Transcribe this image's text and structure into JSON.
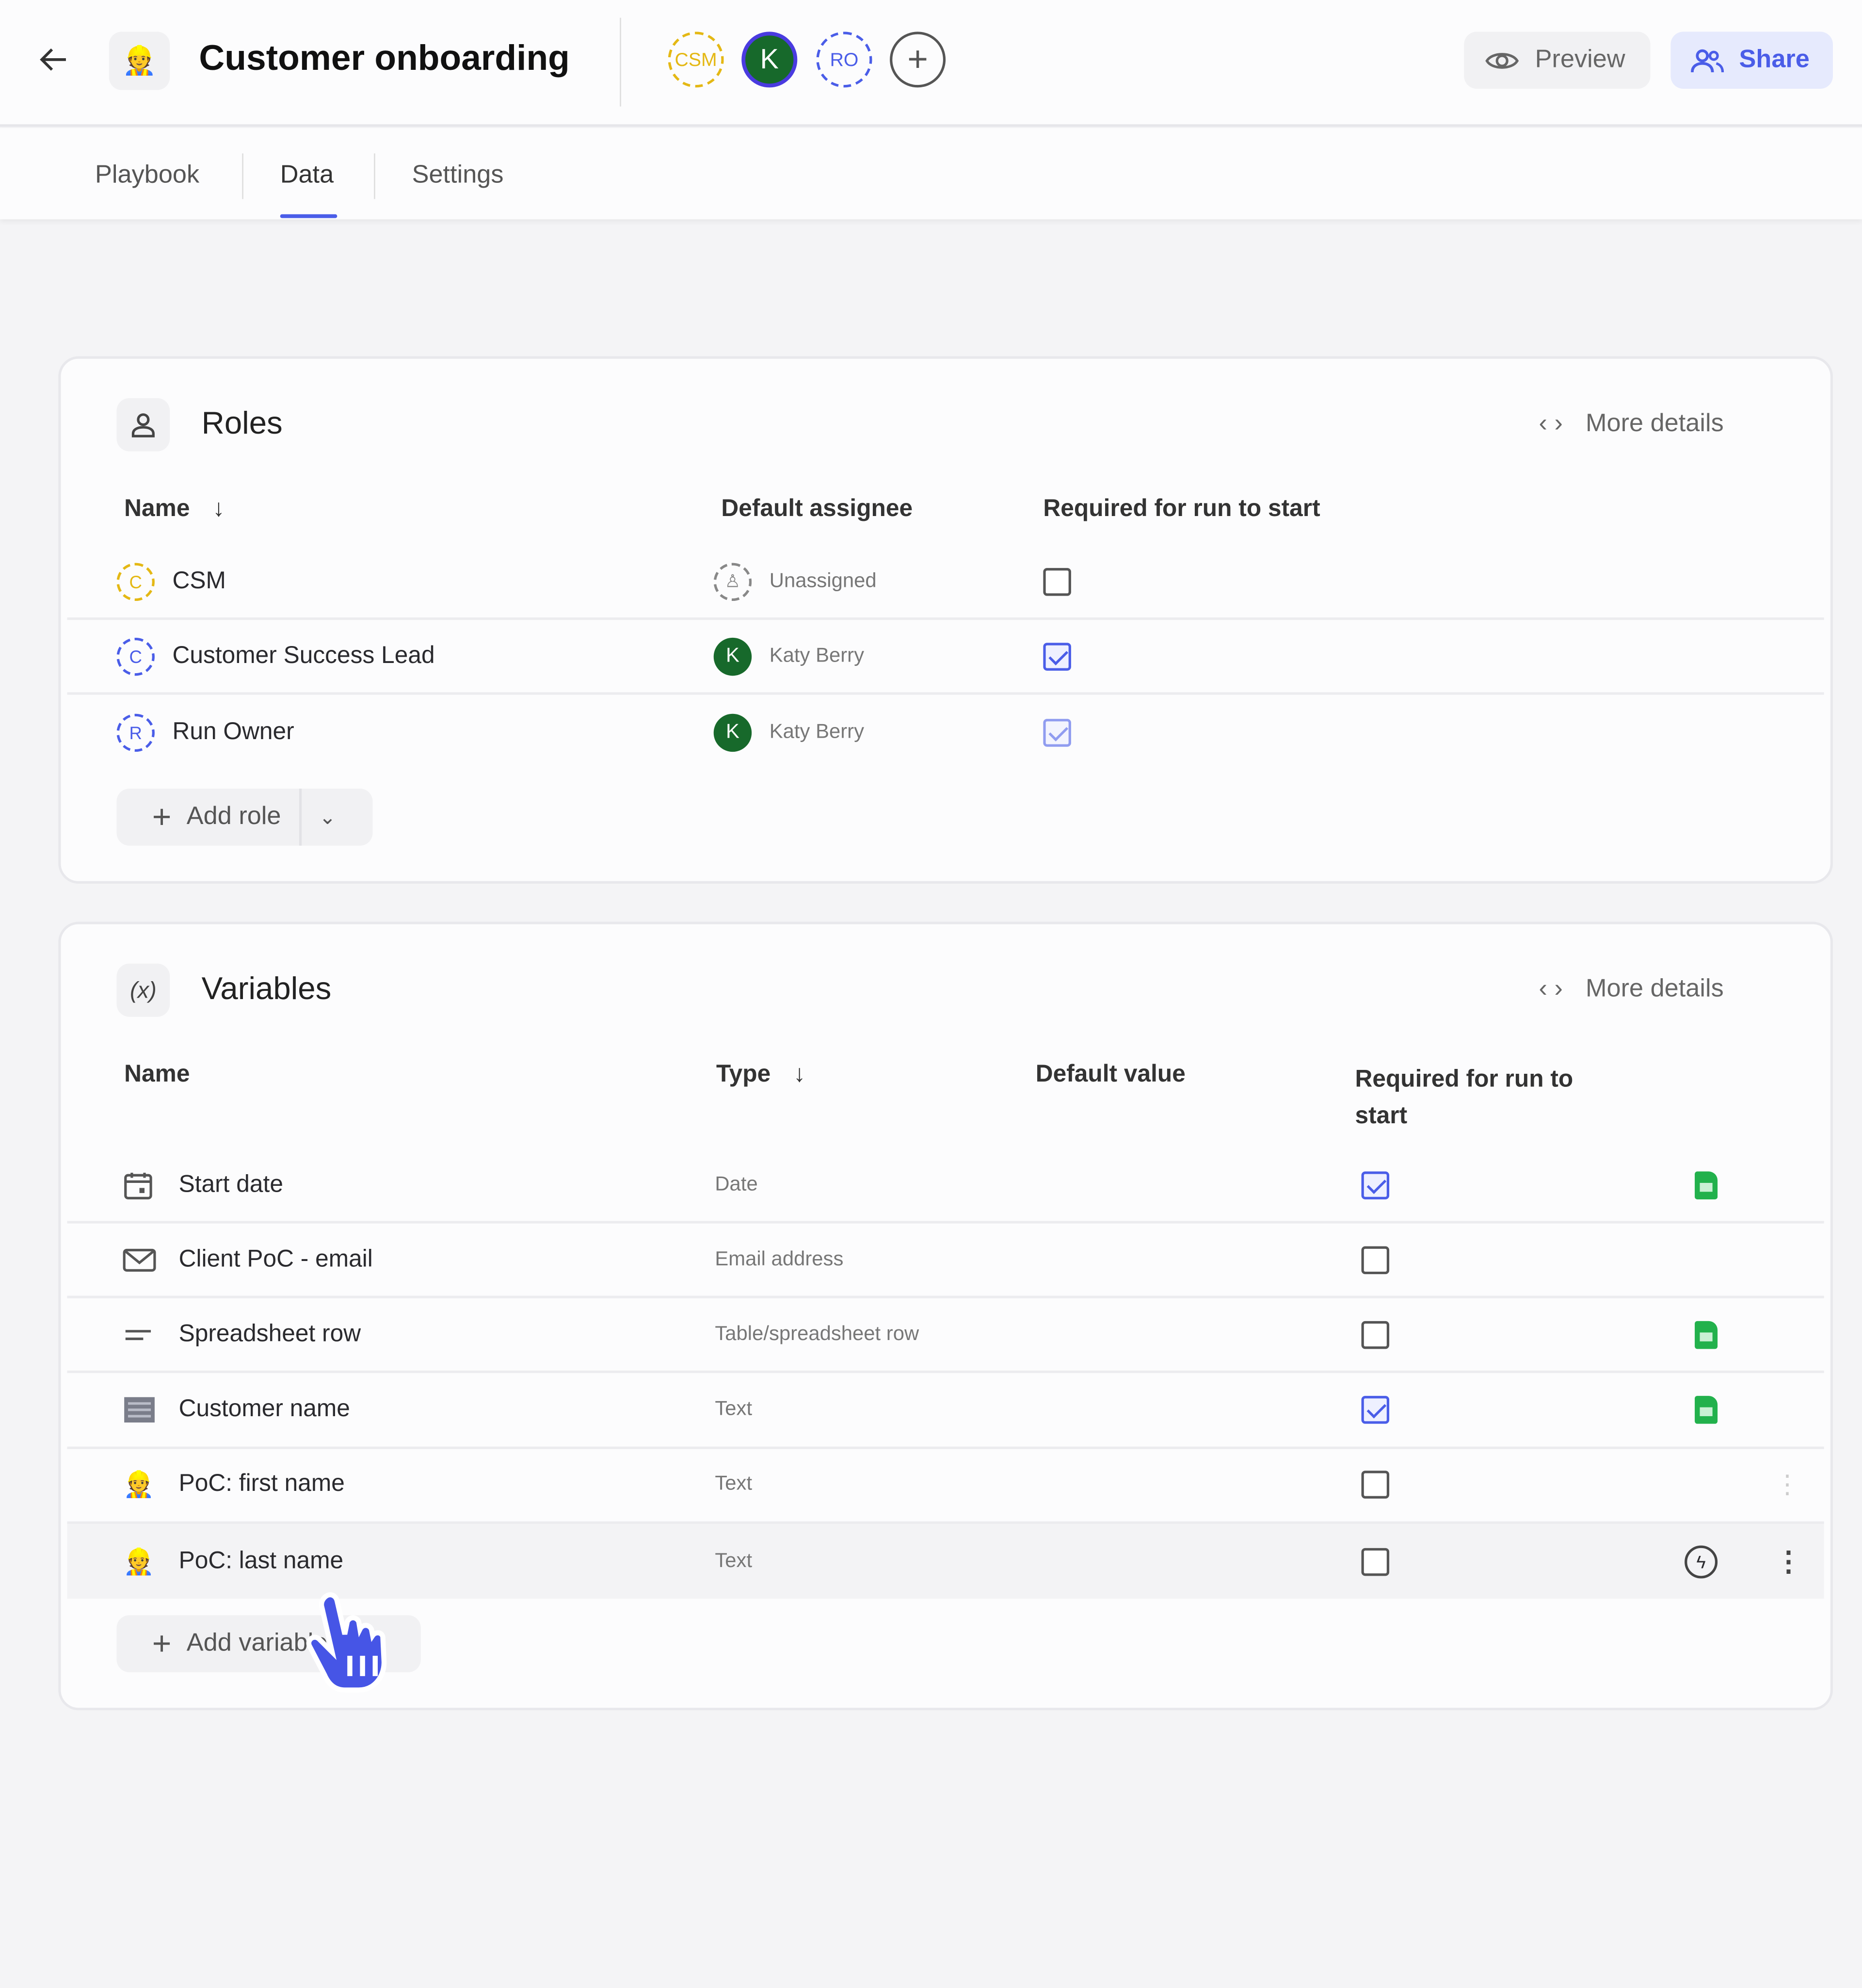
{
  "header": {
    "title": "Customer onboarding",
    "avatars": [
      {
        "label": "CSM",
        "color": "#e4b814"
      },
      {
        "label": "K",
        "color": "#17692b"
      },
      {
        "label": "RO",
        "color": "#4a5de8"
      }
    ],
    "preview_label": "Preview",
    "share_label": "Share",
    "accent": "#4a5de8"
  },
  "tabs": [
    {
      "label": "Playbook"
    },
    {
      "label": "Data",
      "active": true
    },
    {
      "label": "Settings"
    }
  ],
  "roles": {
    "title": "Roles",
    "more_details": "More details",
    "columns": {
      "name": "Name",
      "assignee": "Default assignee",
      "required": "Required for run to start"
    },
    "rows": [
      {
        "initial": "C",
        "name": "CSM",
        "assignee": "Unassigned",
        "required": false
      },
      {
        "initial": "C",
        "name": "Customer Success Lead",
        "assignee": "Katy Berry",
        "assignee_initial": "K",
        "required": true
      },
      {
        "initial": "R",
        "name": "Run Owner",
        "assignee": "Katy Berry",
        "assignee_initial": "K",
        "required": true
      }
    ],
    "add_label": "Add role"
  },
  "variables": {
    "title": "Variables",
    "icon_label": "(x)",
    "more_details": "More details",
    "columns": {
      "name": "Name",
      "type": "Type",
      "default": "Default value",
      "required": "Required for run to start"
    },
    "rows": [
      {
        "icon": "calendar-icon",
        "name": "Start date",
        "type": "Date",
        "required": true,
        "sheet": true
      },
      {
        "icon": "mail-icon",
        "name": "Client PoC - email",
        "type": "Email address",
        "required": false,
        "sheet": false
      },
      {
        "icon": "lines-icon",
        "name": "Spreadsheet row",
        "type": "Table/spreadsheet row",
        "required": false,
        "sheet": true
      },
      {
        "icon": "building-icon",
        "name": "Customer name",
        "type": "Text",
        "required": true,
        "sheet": true
      },
      {
        "icon": "person-emoji-icon",
        "name": "PoC: first name",
        "type": "Text",
        "required": false,
        "sheet": false
      },
      {
        "icon": "person-emoji-icon",
        "name": "PoC: last name",
        "type": "Text",
        "required": false,
        "sheet": false
      }
    ],
    "add_label": "Add variable"
  }
}
